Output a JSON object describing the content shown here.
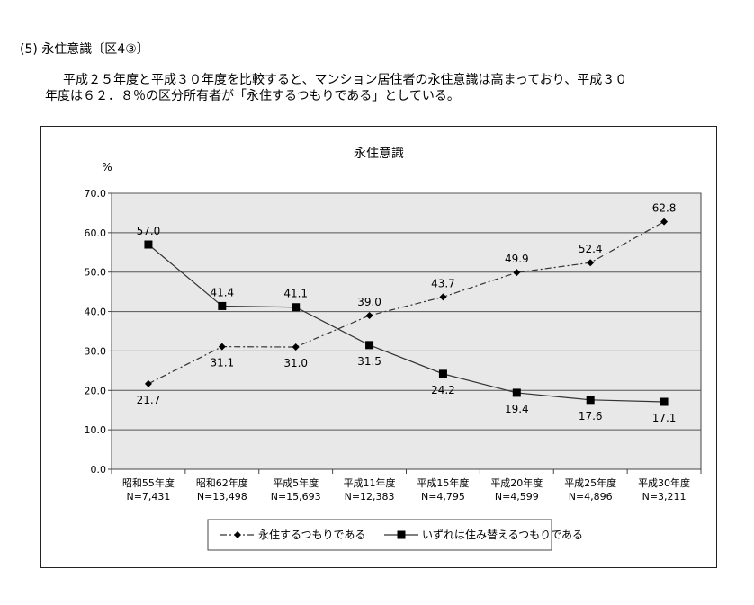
{
  "heading": "(5) 永住意識〔区4③〕",
  "paragraph": {
    "line1": "平成２５年度と平成３０年度を比較すると、マンション居住者の永住意識は高まっており、平成３０",
    "line2": "年度は６２．８％の区分所有者が「永住するつもりである」としている。"
  },
  "chart_data": {
    "type": "line",
    "title": "永住意識",
    "ylabel": "%",
    "xlabel": "",
    "ylim": [
      0,
      70
    ],
    "yticks": [
      "0.0",
      "10.0",
      "20.0",
      "30.0",
      "40.0",
      "50.0",
      "60.0",
      "70.0"
    ],
    "grid": true,
    "legend_position": "bottom",
    "categories": [
      "昭和55年度",
      "昭和62年度",
      "平成5年度",
      "平成11年度",
      "平成15年度",
      "平成20年度",
      "平成25年度",
      "平成30年度"
    ],
    "sample_sizes": [
      "N=7,431",
      "N=13,498",
      "N=15,693",
      "N=12,383",
      "N=4,795",
      "N=4,599",
      "N=4,896",
      "N=3,211"
    ],
    "series": [
      {
        "name": "永住するつもりである",
        "values": [
          21.7,
          31.1,
          31.0,
          39.0,
          43.7,
          49.9,
          52.4,
          62.8
        ],
        "labels": [
          "21.7",
          "31.1",
          "31.0",
          "39.0",
          "43.7",
          "49.9",
          "52.4",
          "62.8"
        ],
        "label_position": [
          "below",
          "below",
          "below",
          "above",
          "above",
          "above",
          "above",
          "above"
        ],
        "line_style": "dash-dot",
        "marker": "diamond",
        "color": "#333333"
      },
      {
        "name": "いずれは住み替えるつもりである",
        "values": [
          57.0,
          41.4,
          41.1,
          31.5,
          24.2,
          19.4,
          17.6,
          17.1
        ],
        "labels": [
          "57.0",
          "41.4",
          "41.1",
          "31.5",
          "24.2",
          "19.4",
          "17.6",
          "17.1"
        ],
        "label_position": [
          "above",
          "above",
          "above",
          "below",
          "below",
          "below",
          "below",
          "below"
        ],
        "line_style": "solid",
        "marker": "square",
        "color": "#333333"
      }
    ],
    "plot_background": "#e8e8e8"
  }
}
